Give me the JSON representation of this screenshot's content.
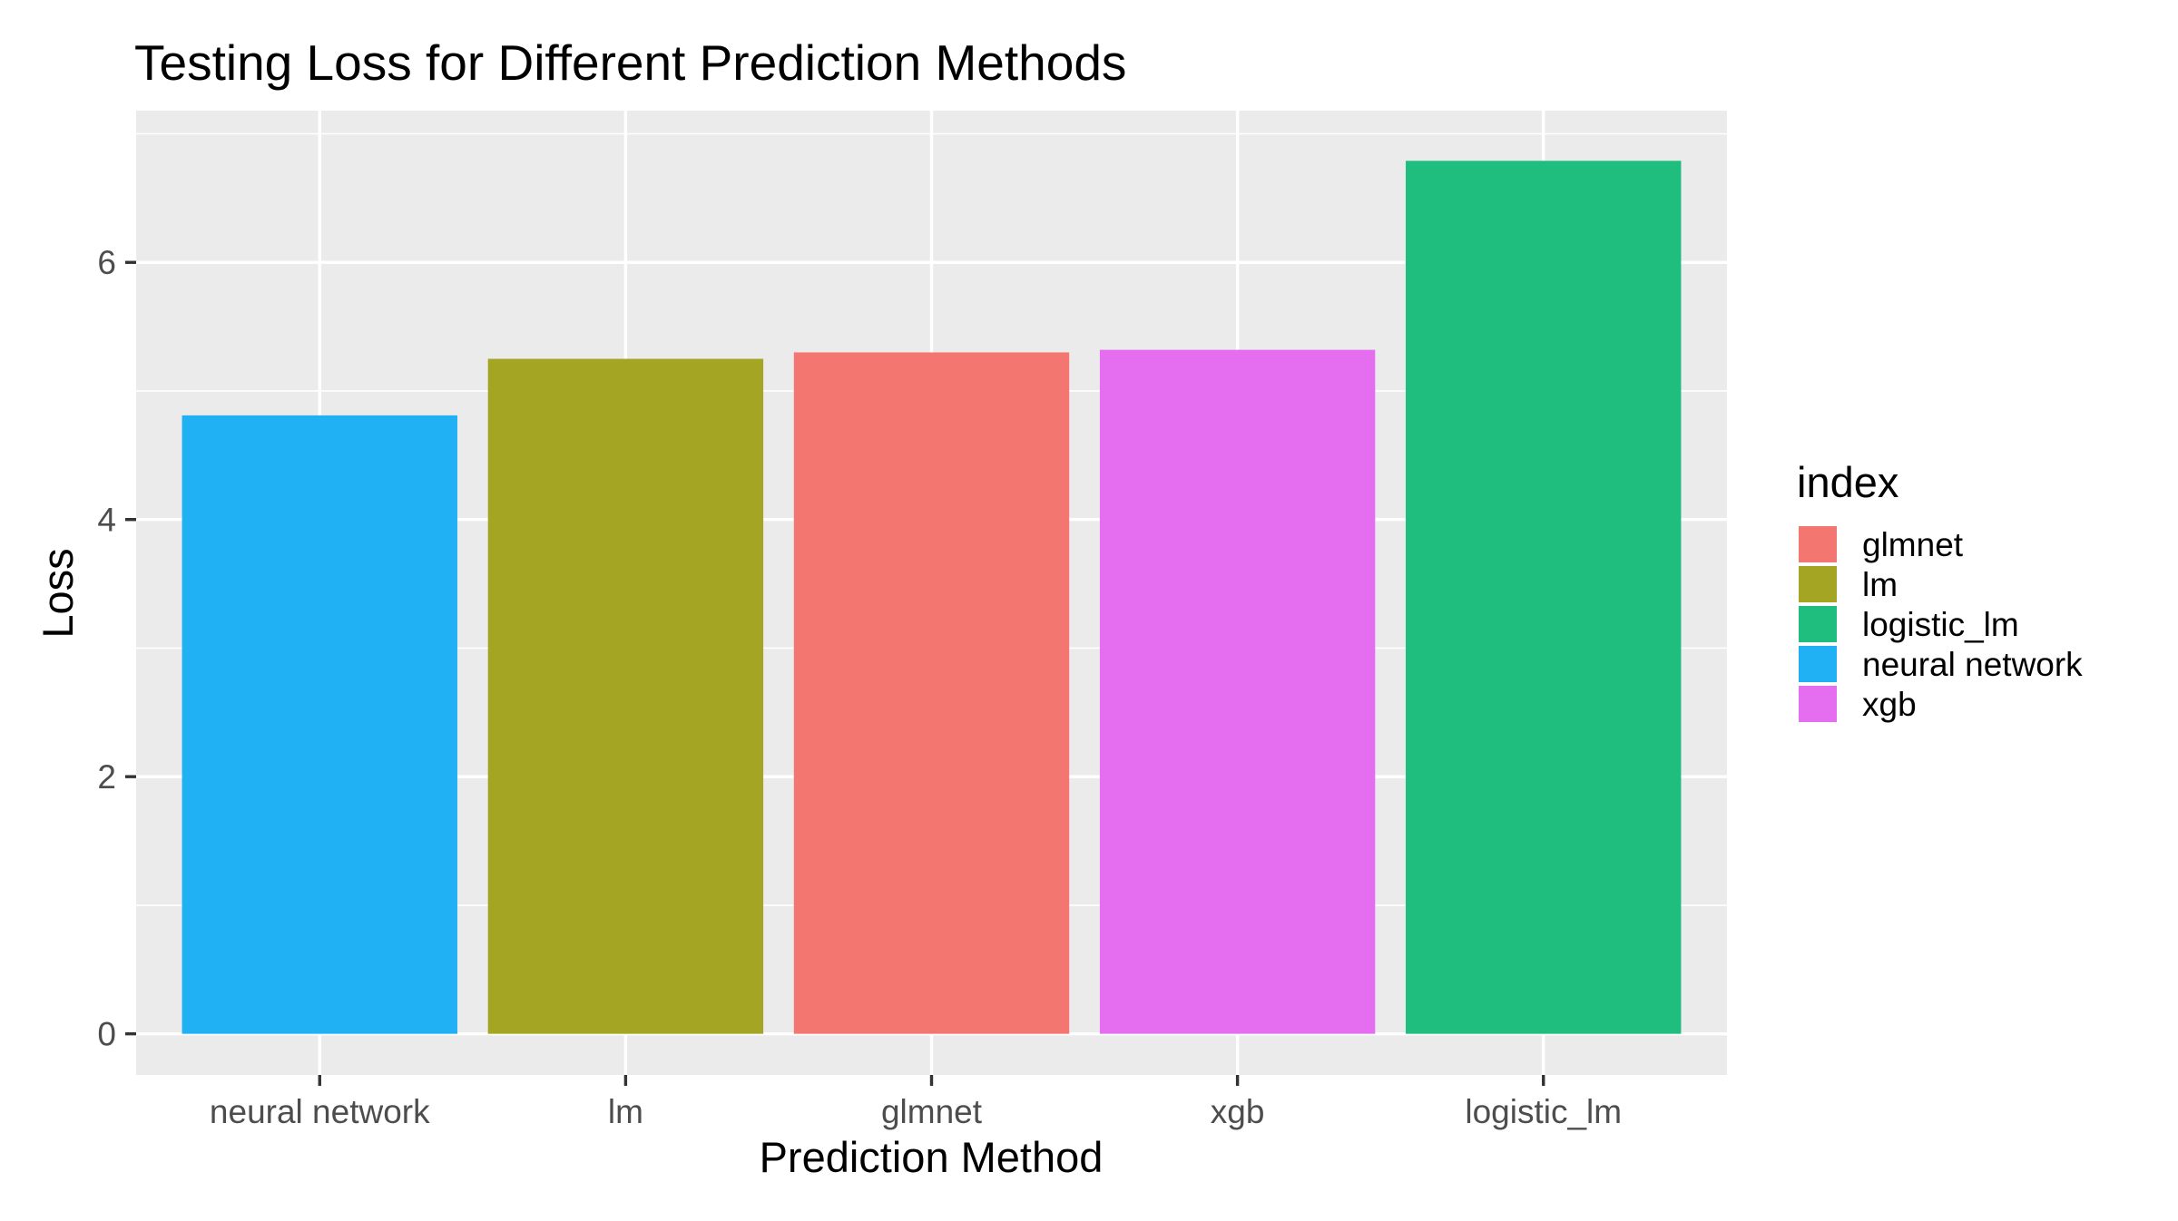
{
  "chart_data": {
    "type": "bar",
    "title": "Testing Loss for Different Prediction Methods",
    "xlabel": "Prediction Method",
    "ylabel": "Loss",
    "categories": [
      "neural network",
      "lm",
      "glmnet",
      "xgb",
      "logistic_lm"
    ],
    "values": [
      4.81,
      5.25,
      5.3,
      5.32,
      6.79
    ],
    "bar_colors": [
      "#1FB1F4",
      "#A3A523",
      "#F47670",
      "#E46EEF",
      "#1FBD7E"
    ],
    "ylim": [
      -0.32,
      7.18
    ],
    "yticks": [
      0,
      2,
      4,
      6
    ],
    "ytick_labels": [
      "0",
      "2",
      "4",
      "6"
    ],
    "grid": true,
    "panel_background": "#EBEBEB",
    "legend": {
      "title": "index",
      "position": "right",
      "entries": [
        {
          "label": "glmnet",
          "color": "#F47670"
        },
        {
          "label": "lm",
          "color": "#A3A523"
        },
        {
          "label": "logistic_lm",
          "color": "#1FBD7E"
        },
        {
          "label": "neural network",
          "color": "#1FB1F4"
        },
        {
          "label": "xgb",
          "color": "#E46EEF"
        }
      ]
    }
  }
}
